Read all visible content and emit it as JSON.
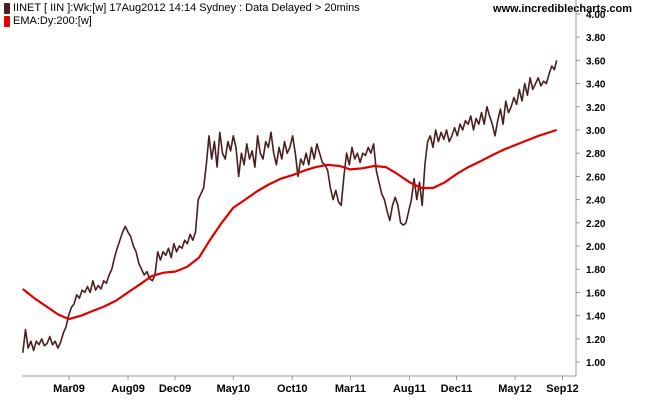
{
  "header": {
    "price_legend": "IINET [ IIN ]:Wk:[w]  17Aug2012 14:14 Sydney : Data Delayed > 20mins",
    "ema_legend": "EMA:Dy:200:[w]",
    "brand": "www.incrediblecharts.com"
  },
  "colors": {
    "price": "#4a1e1e",
    "ema": "#e00000",
    "axis": "#999999",
    "background": "#ffffff"
  },
  "chart_data": {
    "type": "line",
    "title": "",
    "xlabel": "",
    "ylabel": "",
    "ylim": [
      0.88,
      4.12
    ],
    "x_range": [
      "2008-10-30",
      "2012-10-06"
    ],
    "grid": false,
    "y_ticks": [
      "1.00",
      "1.20",
      "1.40",
      "1.60",
      "1.80",
      "2.00",
      "2.20",
      "2.40",
      "2.60",
      "2.80",
      "3.00",
      "3.20",
      "3.40",
      "3.60",
      "3.80",
      "4.00"
    ],
    "x_ticks": [
      {
        "label": "Mar09",
        "date": "2009-03-01"
      },
      {
        "label": "Aug09",
        "date": "2009-08-01"
      },
      {
        "label": "Dec09",
        "date": "2009-12-01"
      },
      {
        "label": "May10",
        "date": "2010-05-01"
      },
      {
        "label": "Oct10",
        "date": "2010-10-01"
      },
      {
        "label": "Mar11",
        "date": "2011-03-01"
      },
      {
        "label": "Aug11",
        "date": "2011-08-01"
      },
      {
        "label": "Dec11",
        "date": "2011-12-01"
      },
      {
        "label": "May12",
        "date": "2012-05-01"
      },
      {
        "label": "Sep12",
        "date": "2012-09-01"
      }
    ],
    "series": [
      {
        "key": "price",
        "points": [
          [
            "2008-11-01",
            1.08
          ],
          [
            "2008-11-08",
            1.28
          ],
          [
            "2008-11-15",
            1.12
          ],
          [
            "2008-11-22",
            1.18
          ],
          [
            "2008-11-29",
            1.1
          ],
          [
            "2008-12-06",
            1.18
          ],
          [
            "2008-12-13",
            1.15
          ],
          [
            "2008-12-20",
            1.2
          ],
          [
            "2008-12-27",
            1.14
          ],
          [
            "2009-01-03",
            1.16
          ],
          [
            "2009-01-10",
            1.22
          ],
          [
            "2009-01-17",
            1.15
          ],
          [
            "2009-01-24",
            1.18
          ],
          [
            "2009-01-31",
            1.12
          ],
          [
            "2009-02-07",
            1.17
          ],
          [
            "2009-02-14",
            1.25
          ],
          [
            "2009-02-21",
            1.3
          ],
          [
            "2009-02-28",
            1.4
          ],
          [
            "2009-03-07",
            1.47
          ],
          [
            "2009-03-14",
            1.5
          ],
          [
            "2009-03-21",
            1.58
          ],
          [
            "2009-03-28",
            1.55
          ],
          [
            "2009-04-04",
            1.62
          ],
          [
            "2009-04-11",
            1.6
          ],
          [
            "2009-04-18",
            1.65
          ],
          [
            "2009-04-25",
            1.6
          ],
          [
            "2009-05-02",
            1.7
          ],
          [
            "2009-05-09",
            1.62
          ],
          [
            "2009-05-16",
            1.66
          ],
          [
            "2009-05-23",
            1.63
          ],
          [
            "2009-05-30",
            1.7
          ],
          [
            "2009-06-06",
            1.68
          ],
          [
            "2009-06-13",
            1.75
          ],
          [
            "2009-06-20",
            1.8
          ],
          [
            "2009-06-27",
            1.9
          ],
          [
            "2009-07-04",
            1.98
          ],
          [
            "2009-07-11",
            2.05
          ],
          [
            "2009-07-18",
            2.12
          ],
          [
            "2009-07-25",
            2.17
          ],
          [
            "2009-08-01",
            2.12
          ],
          [
            "2009-08-08",
            2.08
          ],
          [
            "2009-08-15",
            2.0
          ],
          [
            "2009-08-22",
            1.95
          ],
          [
            "2009-08-29",
            1.85
          ],
          [
            "2009-09-05",
            1.8
          ],
          [
            "2009-09-12",
            1.75
          ],
          [
            "2009-09-19",
            1.78
          ],
          [
            "2009-09-26",
            1.72
          ],
          [
            "2009-10-03",
            1.7
          ],
          [
            "2009-10-10",
            1.75
          ],
          [
            "2009-10-17",
            1.95
          ],
          [
            "2009-10-24",
            1.88
          ],
          [
            "2009-10-31",
            1.95
          ],
          [
            "2009-11-07",
            1.92
          ],
          [
            "2009-11-14",
            1.98
          ],
          [
            "2009-11-21",
            1.9
          ],
          [
            "2009-11-28",
            2.02
          ],
          [
            "2009-12-05",
            1.95
          ],
          [
            "2009-12-12",
            2.0
          ],
          [
            "2009-12-19",
            1.98
          ],
          [
            "2009-12-26",
            2.05
          ],
          [
            "2010-01-02",
            2.02
          ],
          [
            "2010-01-09",
            2.1
          ],
          [
            "2010-01-16",
            2.05
          ],
          [
            "2010-01-23",
            2.12
          ],
          [
            "2010-01-30",
            2.4
          ],
          [
            "2010-02-06",
            2.45
          ],
          [
            "2010-02-13",
            2.5
          ],
          [
            "2010-02-20",
            2.7
          ],
          [
            "2010-02-27",
            2.95
          ],
          [
            "2010-03-06",
            2.75
          ],
          [
            "2010-03-13",
            2.9
          ],
          [
            "2010-03-20",
            2.68
          ],
          [
            "2010-03-27",
            2.98
          ],
          [
            "2010-04-03",
            2.8
          ],
          [
            "2010-04-10",
            2.75
          ],
          [
            "2010-04-17",
            2.9
          ],
          [
            "2010-04-24",
            2.82
          ],
          [
            "2010-05-01",
            2.95
          ],
          [
            "2010-05-08",
            2.85
          ],
          [
            "2010-05-15",
            2.6
          ],
          [
            "2010-05-22",
            2.8
          ],
          [
            "2010-05-29",
            2.7
          ],
          [
            "2010-06-05",
            2.88
          ],
          [
            "2010-06-12",
            2.75
          ],
          [
            "2010-06-19",
            2.82
          ],
          [
            "2010-06-26",
            2.68
          ],
          [
            "2010-07-03",
            2.95
          ],
          [
            "2010-07-10",
            2.8
          ],
          [
            "2010-07-17",
            2.75
          ],
          [
            "2010-07-24",
            2.9
          ],
          [
            "2010-07-31",
            2.85
          ],
          [
            "2010-08-07",
            2.98
          ],
          [
            "2010-08-14",
            2.8
          ],
          [
            "2010-08-21",
            2.7
          ],
          [
            "2010-08-28",
            2.85
          ],
          [
            "2010-09-04",
            2.75
          ],
          [
            "2010-09-11",
            2.9
          ],
          [
            "2010-09-18",
            2.8
          ],
          [
            "2010-09-25",
            2.85
          ],
          [
            "2010-10-02",
            2.95
          ],
          [
            "2010-10-09",
            2.8
          ],
          [
            "2010-10-16",
            2.6
          ],
          [
            "2010-10-23",
            2.75
          ],
          [
            "2010-10-30",
            2.7
          ],
          [
            "2010-11-06",
            2.8
          ],
          [
            "2010-11-13",
            2.7
          ],
          [
            "2010-11-20",
            2.85
          ],
          [
            "2010-11-27",
            2.75
          ],
          [
            "2010-12-04",
            2.88
          ],
          [
            "2010-12-11",
            2.8
          ],
          [
            "2010-12-18",
            2.72
          ],
          [
            "2010-12-25",
            2.7
          ],
          [
            "2011-01-01",
            2.65
          ],
          [
            "2011-01-08",
            2.5
          ],
          [
            "2011-01-15",
            2.4
          ],
          [
            "2011-01-22",
            2.48
          ],
          [
            "2011-01-29",
            2.38
          ],
          [
            "2011-02-05",
            2.35
          ],
          [
            "2011-02-12",
            2.6
          ],
          [
            "2011-02-19",
            2.8
          ],
          [
            "2011-02-26",
            2.7
          ],
          [
            "2011-03-05",
            2.85
          ],
          [
            "2011-03-12",
            2.75
          ],
          [
            "2011-03-19",
            2.8
          ],
          [
            "2011-03-26",
            2.72
          ],
          [
            "2011-04-02",
            2.8
          ],
          [
            "2011-04-09",
            2.78
          ],
          [
            "2011-04-16",
            2.85
          ],
          [
            "2011-04-23",
            2.8
          ],
          [
            "2011-04-30",
            2.88
          ],
          [
            "2011-05-07",
            2.65
          ],
          [
            "2011-05-14",
            2.55
          ],
          [
            "2011-05-21",
            2.45
          ],
          [
            "2011-05-28",
            2.4
          ],
          [
            "2011-06-04",
            2.3
          ],
          [
            "2011-06-11",
            2.22
          ],
          [
            "2011-06-18",
            2.35
          ],
          [
            "2011-06-25",
            2.42
          ],
          [
            "2011-07-02",
            2.35
          ],
          [
            "2011-07-09",
            2.2
          ],
          [
            "2011-07-16",
            2.18
          ],
          [
            "2011-07-23",
            2.2
          ],
          [
            "2011-07-30",
            2.3
          ],
          [
            "2011-08-06",
            2.4
          ],
          [
            "2011-08-13",
            2.58
          ],
          [
            "2011-08-20",
            2.4
          ],
          [
            "2011-08-27",
            2.55
          ],
          [
            "2011-09-03",
            2.35
          ],
          [
            "2011-09-10",
            2.7
          ],
          [
            "2011-09-17",
            2.9
          ],
          [
            "2011-09-24",
            2.95
          ],
          [
            "2011-10-01",
            2.85
          ],
          [
            "2011-10-08",
            3.0
          ],
          [
            "2011-10-15",
            2.9
          ],
          [
            "2011-10-22",
            2.98
          ],
          [
            "2011-10-29",
            2.92
          ],
          [
            "2011-11-05",
            3.0
          ],
          [
            "2011-11-12",
            2.9
          ],
          [
            "2011-11-19",
            2.95
          ],
          [
            "2011-11-26",
            3.02
          ],
          [
            "2011-12-03",
            2.95
          ],
          [
            "2011-12-10",
            3.05
          ],
          [
            "2011-12-17",
            3.0
          ],
          [
            "2011-12-24",
            3.08
          ],
          [
            "2011-12-31",
            3.05
          ],
          [
            "2012-01-07",
            3.12
          ],
          [
            "2012-01-14",
            3.0
          ],
          [
            "2012-01-21",
            3.1
          ],
          [
            "2012-01-28",
            3.05
          ],
          [
            "2012-02-04",
            3.15
          ],
          [
            "2012-02-11",
            3.05
          ],
          [
            "2012-02-18",
            3.2
          ],
          [
            "2012-02-25",
            3.12
          ],
          [
            "2012-03-03",
            3.05
          ],
          [
            "2012-03-10",
            2.95
          ],
          [
            "2012-03-17",
            3.08
          ],
          [
            "2012-03-24",
            3.18
          ],
          [
            "2012-03-31",
            3.05
          ],
          [
            "2012-04-07",
            3.25
          ],
          [
            "2012-04-14",
            3.15
          ],
          [
            "2012-04-21",
            3.2
          ],
          [
            "2012-04-28",
            3.28
          ],
          [
            "2012-05-05",
            3.22
          ],
          [
            "2012-05-12",
            3.35
          ],
          [
            "2012-05-19",
            3.25
          ],
          [
            "2012-05-26",
            3.4
          ],
          [
            "2012-06-02",
            3.3
          ],
          [
            "2012-06-09",
            3.45
          ],
          [
            "2012-06-16",
            3.35
          ],
          [
            "2012-06-23",
            3.4
          ],
          [
            "2012-06-30",
            3.45
          ],
          [
            "2012-07-07",
            3.38
          ],
          [
            "2012-07-14",
            3.42
          ],
          [
            "2012-07-21",
            3.4
          ],
          [
            "2012-07-28",
            3.48
          ],
          [
            "2012-08-04",
            3.55
          ],
          [
            "2012-08-11",
            3.52
          ],
          [
            "2012-08-17",
            3.6
          ]
        ]
      },
      {
        "key": "ema",
        "points": [
          [
            "2008-11-01",
            1.63
          ],
          [
            "2008-12-01",
            1.55
          ],
          [
            "2009-01-01",
            1.48
          ],
          [
            "2009-02-01",
            1.41
          ],
          [
            "2009-03-01",
            1.37
          ],
          [
            "2009-04-01",
            1.4
          ],
          [
            "2009-05-01",
            1.44
          ],
          [
            "2009-06-01",
            1.48
          ],
          [
            "2009-07-01",
            1.53
          ],
          [
            "2009-08-01",
            1.6
          ],
          [
            "2009-09-01",
            1.67
          ],
          [
            "2009-10-01",
            1.74
          ],
          [
            "2009-11-01",
            1.77
          ],
          [
            "2009-12-01",
            1.78
          ],
          [
            "2010-01-01",
            1.82
          ],
          [
            "2010-02-01",
            1.9
          ],
          [
            "2010-03-01",
            2.05
          ],
          [
            "2010-04-01",
            2.2
          ],
          [
            "2010-05-01",
            2.33
          ],
          [
            "2010-06-01",
            2.4
          ],
          [
            "2010-07-01",
            2.47
          ],
          [
            "2010-08-01",
            2.53
          ],
          [
            "2010-09-01",
            2.58
          ],
          [
            "2010-10-01",
            2.61
          ],
          [
            "2010-11-01",
            2.65
          ],
          [
            "2010-12-01",
            2.68
          ],
          [
            "2011-01-01",
            2.7
          ],
          [
            "2011-02-01",
            2.69
          ],
          [
            "2011-03-01",
            2.66
          ],
          [
            "2011-04-01",
            2.67
          ],
          [
            "2011-05-01",
            2.69
          ],
          [
            "2011-06-01",
            2.68
          ],
          [
            "2011-07-01",
            2.62
          ],
          [
            "2011-08-01",
            2.55
          ],
          [
            "2011-09-01",
            2.5
          ],
          [
            "2011-10-01",
            2.5
          ],
          [
            "2011-11-01",
            2.55
          ],
          [
            "2011-12-01",
            2.62
          ],
          [
            "2012-01-01",
            2.68
          ],
          [
            "2012-02-01",
            2.73
          ],
          [
            "2012-03-01",
            2.78
          ],
          [
            "2012-04-01",
            2.83
          ],
          [
            "2012-05-01",
            2.87
          ],
          [
            "2012-06-01",
            2.91
          ],
          [
            "2012-07-01",
            2.95
          ],
          [
            "2012-08-17",
            3.0
          ]
        ]
      }
    ]
  }
}
